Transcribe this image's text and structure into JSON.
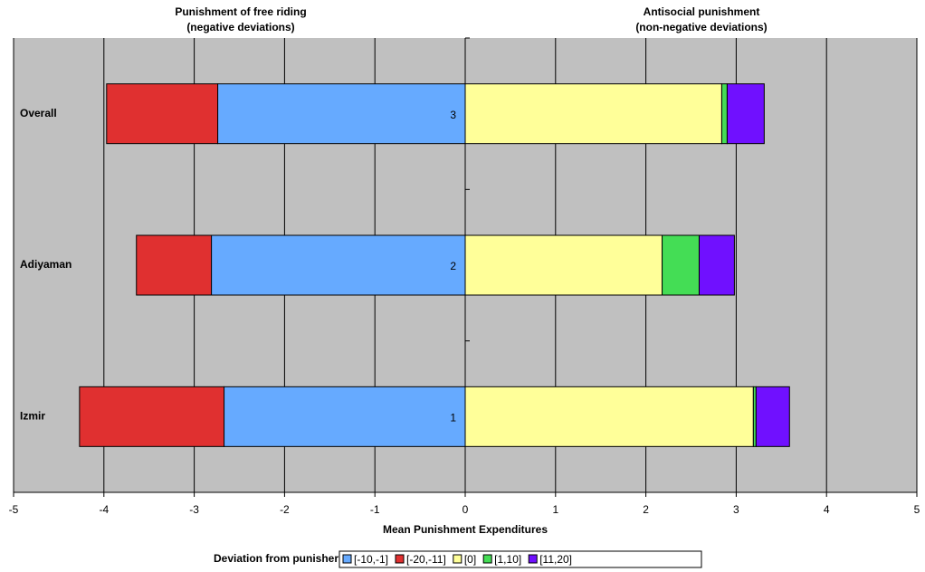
{
  "chart_data": {
    "type": "diverging-bar",
    "titles": [
      "Punishment of free riding",
      "(negative deviations)",
      "Antisocial punishment",
      "(non-negative deviations)"
    ],
    "xlabel": "Mean Punishment Expenditures",
    "legend_title": "Deviation from punisher's contrib.",
    "categories": [
      "Overall",
      "Adiyaman",
      "Izmir"
    ],
    "bar_labels": [
      "3",
      "2",
      "1"
    ],
    "series": [
      {
        "name": "[-10,-1]",
        "color": "#66aaff",
        "values": [
          -2.74,
          -2.81,
          -2.67
        ]
      },
      {
        "name": "[-20,-11]",
        "color": "#e03030",
        "values": [
          -1.23,
          -0.83,
          -1.6
        ]
      },
      {
        "name": "[0]",
        "color": "#ffff99",
        "values": [
          2.84,
          2.18,
          3.19
        ]
      },
      {
        "name": "[1,10]",
        "color": "#44dd55",
        "values": [
          0.06,
          0.41,
          0.03
        ]
      },
      {
        "name": "[11,20]",
        "color": "#7010ff",
        "values": [
          0.41,
          0.39,
          0.37
        ]
      }
    ],
    "xlim": [
      -5,
      5
    ],
    "xticks": [
      -5,
      -4,
      -3,
      -2,
      -1,
      0,
      1,
      2,
      3,
      4,
      5
    ],
    "grid": true,
    "background": "#c0c0c0"
  }
}
